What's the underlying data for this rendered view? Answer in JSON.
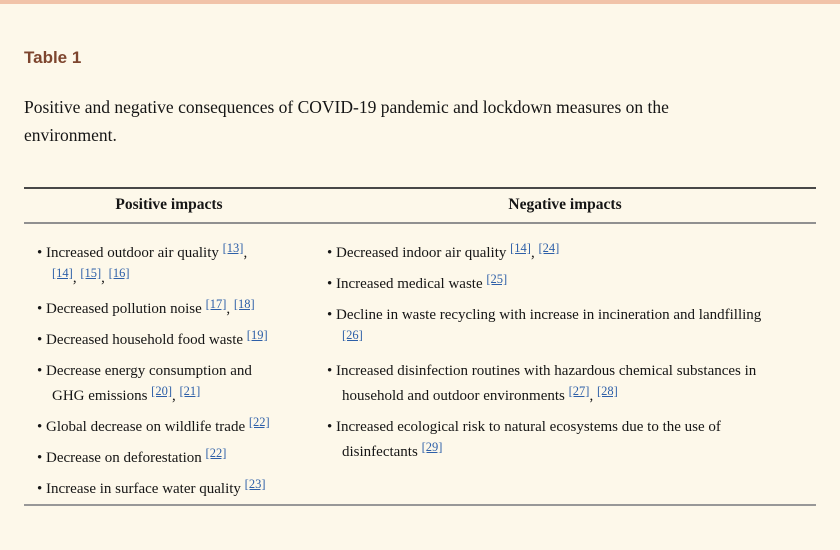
{
  "page": {
    "background": "#fdf8ea",
    "top_border_color": "#f1c3a9"
  },
  "colors": {
    "table_label": "#7d452e",
    "citation_link": "#2d5fa8",
    "body_text": "#151515"
  },
  "table_label": "Table 1",
  "caption": "Positive and negative consequences of COVID-19 pandemic and lockdown measures on the environment.",
  "table": {
    "columns": [
      {
        "header": "Positive impacts",
        "items": [
          [
            {
              "t": "Increased outdoor air quality "
            },
            {
              "c": "[13]"
            },
            {
              "t": ","
            },
            {
              "br": true
            },
            {
              "c": "[14]"
            },
            {
              "t": ", "
            },
            {
              "c": "[15]"
            },
            {
              "t": ", "
            },
            {
              "c": "[16]"
            }
          ],
          [
            {
              "t": "Decreased pollution noise "
            },
            {
              "c": "[17]"
            },
            {
              "t": ", "
            },
            {
              "c": "[18]"
            }
          ],
          [
            {
              "t": "Decreased household food waste "
            },
            {
              "c": "[19]"
            }
          ],
          [
            {
              "t": "Decrease energy consumption and"
            },
            {
              "br": true
            },
            {
              "t": "GHG emissions "
            },
            {
              "c": "[20]"
            },
            {
              "t": ", "
            },
            {
              "c": "[21]"
            }
          ],
          [
            {
              "t": "Global decrease on wildlife trade "
            },
            {
              "c": "[22]"
            }
          ],
          [
            {
              "t": "Decrease on deforestation "
            },
            {
              "c": "[22]"
            }
          ],
          [
            {
              "t": "Increase in surface water quality "
            },
            {
              "c": "[23]"
            }
          ]
        ]
      },
      {
        "header": "Negative impacts",
        "items": [
          [
            {
              "t": "Decreased indoor air quality "
            },
            {
              "c": "[14]"
            },
            {
              "t": ", "
            },
            {
              "c": "[24]"
            }
          ],
          [
            {
              "t": "Increased medical waste "
            },
            {
              "c": "[25]"
            }
          ],
          [
            {
              "t": "Decline in waste recycling with increase in incineration and landfilling"
            },
            {
              "br": true
            },
            {
              "c": "[26]"
            }
          ],
          [
            {
              "t": "Increased disinfection routines with hazardous chemical substances in"
            },
            {
              "br": true
            },
            {
              "t": "household and outdoor environments "
            },
            {
              "c": "[27]"
            },
            {
              "t": ", "
            },
            {
              "c": "[28]"
            }
          ],
          [
            {
              "t": "Increased ecological risk to natural ecosystems due to the use of"
            },
            {
              "br": true
            },
            {
              "t": "disinfectants "
            },
            {
              "c": "[29]"
            }
          ]
        ]
      }
    ]
  }
}
